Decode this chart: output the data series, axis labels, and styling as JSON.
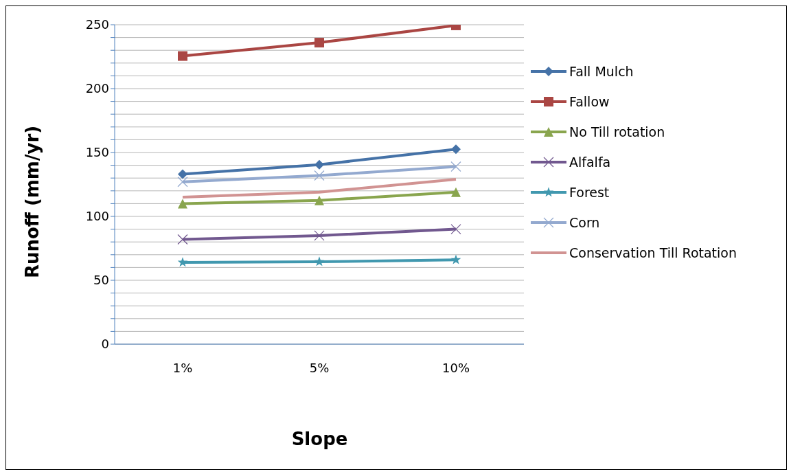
{
  "chart_data": {
    "type": "line",
    "xlabel": "Slope",
    "ylabel": "Runoff (mm/yr)",
    "categories": [
      "1%",
      "5%",
      "10%"
    ],
    "ylim": [
      0,
      250
    ],
    "yticks": [
      0,
      {
        "value": 10,
        "label": null
      },
      {
        "value": 20,
        "label": null
      },
      {
        "value": 30,
        "label": null
      },
      {
        "value": 40,
        "label": null
      },
      50,
      {
        "value": 60,
        "label": null
      },
      {
        "value": 70,
        "label": null
      },
      {
        "value": 80,
        "label": null
      },
      {
        "value": 90,
        "label": null
      },
      100,
      {
        "value": 110,
        "label": null
      },
      {
        "value": 120,
        "label": null
      },
      {
        "value": 130,
        "label": null
      },
      {
        "value": 140,
        "label": null
      },
      150,
      {
        "value": 160,
        "label": null
      },
      {
        "value": 170,
        "label": null
      },
      {
        "value": 180,
        "label": null
      },
      {
        "value": 190,
        "label": null
      },
      200,
      {
        "value": 210,
        "label": null
      },
      {
        "value": 220,
        "label": null
      },
      {
        "value": 230,
        "label": null
      },
      {
        "value": 240,
        "label": null
      },
      250
    ],
    "grid": "y",
    "legend": "right",
    "series": [
      {
        "name": "Fall Mulch",
        "color": "#4572a7",
        "marker": "diamond",
        "values": [
          133,
          140.5,
          152.5
        ]
      },
      {
        "name": "Fallow",
        "color": "#aa4643",
        "marker": "square",
        "values": [
          225.5,
          236,
          249.5
        ]
      },
      {
        "name": "No Till rotation",
        "color": "#89a54e",
        "marker": "triangle",
        "values": [
          110,
          112.5,
          119
        ]
      },
      {
        "name": "Alfalfa",
        "color": "#71588f",
        "marker": "cross",
        "values": [
          82,
          85,
          90
        ]
      },
      {
        "name": "Forest",
        "color": "#4198af",
        "marker": "star",
        "values": [
          64,
          64.5,
          66
        ]
      },
      {
        "name": "Corn",
        "color": "#93a9cf",
        "marker": "cross",
        "values": [
          127,
          132,
          139
        ]
      },
      {
        "name": "Conservation Till Rotation",
        "color": "#d19392",
        "marker": "none",
        "values": [
          115,
          119,
          129
        ]
      }
    ]
  }
}
